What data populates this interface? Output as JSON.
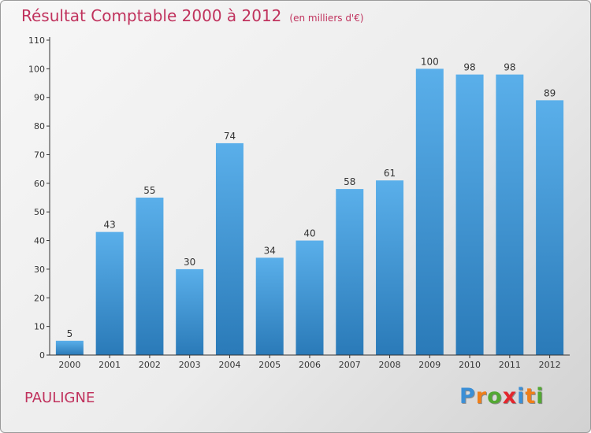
{
  "header": {
    "title": "Résultat Comptable 2000 à 2012",
    "subtitle": "(en milliers d'€)"
  },
  "footer": {
    "town": "PAULIGNE",
    "brand_letters": [
      "P",
      "r",
      "o",
      "x",
      "i",
      "t",
      "i"
    ],
    "brand_colors": [
      "#3b8fd6",
      "#ef7f1a",
      "#53a833",
      "#e3262d",
      "#3b8fd6",
      "#ef7f1a",
      "#53a833"
    ]
  },
  "chart_data": {
    "type": "bar",
    "title": "Résultat Comptable 2000 à 2012",
    "subtitle": "(en milliers d'€)",
    "categories": [
      "2000",
      "2001",
      "2002",
      "2003",
      "2004",
      "2005",
      "2006",
      "2007",
      "2008",
      "2009",
      "2010",
      "2011",
      "2012"
    ],
    "values": [
      5,
      43,
      55,
      30,
      74,
      34,
      40,
      58,
      61,
      100,
      98,
      98,
      89
    ],
    "ylim": [
      0,
      110
    ],
    "yticks": [
      0,
      10,
      20,
      30,
      40,
      50,
      60,
      70,
      80,
      90,
      100,
      110
    ],
    "grid": false,
    "bar_color_top": "#5aafea",
    "bar_color_bottom": "#2a7ab8",
    "axis_color": "#333333",
    "text_color": "#333333"
  }
}
